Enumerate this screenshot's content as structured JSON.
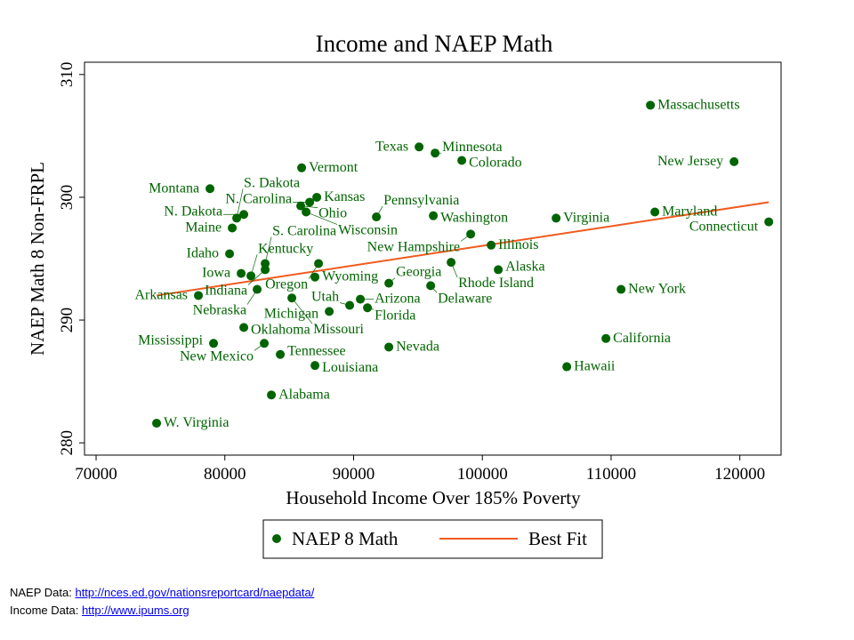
{
  "chart_data": {
    "type": "scatter",
    "title": "Income and NAEP Math",
    "xlabel": "Household Income Over 185% Poverty",
    "ylabel": "NAEP Math 8 Non-FRPL",
    "xlim": [
      69100,
      123200
    ],
    "ylim": [
      279,
      311
    ],
    "xticks": [
      70000,
      80000,
      90000,
      100000,
      110000,
      120000
    ],
    "yticks": [
      280,
      290,
      300,
      310
    ],
    "grid": false,
    "legend_position": "bottom",
    "colors": {
      "points": "#006400",
      "fit": "#f05a1e",
      "label": "#006400"
    },
    "series": [
      {
        "name": "NAEP 8 Math",
        "type": "scatter",
        "points": [
          {
            "label": "Massachusetts",
            "x": 113054,
            "y": 307.5
          },
          {
            "label": "Texas",
            "x": 95087,
            "y": 304.1
          },
          {
            "label": "Minnesota",
            "x": 96330,
            "y": 303.6
          },
          {
            "label": "Colorado",
            "x": 98403,
            "y": 303.0
          },
          {
            "label": "New Jersey",
            "x": 119551,
            "y": 302.9
          },
          {
            "label": "Vermont",
            "x": 85964,
            "y": 302.4
          },
          {
            "label": "Montana",
            "x": 78846,
            "y": 300.7
          },
          {
            "label": "Kansas",
            "x": 87139,
            "y": 300.0
          },
          {
            "label": "N. Carolina",
            "x": 86586,
            "y": 299.6
          },
          {
            "label": "Ohio",
            "x": 85895,
            "y": 299.3
          },
          {
            "label": "Wisconsin",
            "x": 86310,
            "y": 298.8
          },
          {
            "label": "N. Dakota",
            "x": 81472,
            "y": 298.6
          },
          {
            "label": "S. Dakota",
            "x": 80919,
            "y": 298.3
          },
          {
            "label": "Maine",
            "x": 80574,
            "y": 297.5
          },
          {
            "label": "Pennsylvania",
            "x": 91769,
            "y": 298.4
          },
          {
            "label": "Washington",
            "x": 96192,
            "y": 298.5
          },
          {
            "label": "Virginia",
            "x": 105729,
            "y": 298.3
          },
          {
            "label": "Maryland",
            "x": 113400,
            "y": 298.8
          },
          {
            "label": "Connecticut",
            "x": 122246,
            "y": 298.0
          },
          {
            "label": "New Hampshire",
            "x": 99094,
            "y": 297.0
          },
          {
            "label": "Illinois",
            "x": 100684,
            "y": 296.1
          },
          {
            "label": "Idaho",
            "x": 80366,
            "y": 295.4
          },
          {
            "label": "S. Carolina",
            "x": 83131,
            "y": 294.6
          },
          {
            "label": "Indiana",
            "x": 83131,
            "y": 294.1
          },
          {
            "label": "Oregon",
            "x": 87277,
            "y": 294.6
          },
          {
            "label": "Iowa",
            "x": 81265,
            "y": 293.8
          },
          {
            "label": "Kentucky",
            "x": 82025,
            "y": 293.6
          },
          {
            "label": "Wyoming",
            "x": 87001,
            "y": 293.5
          },
          {
            "label": "Georgia",
            "x": 92737,
            "y": 293.0
          },
          {
            "label": "Rhode Island",
            "x": 97574,
            "y": 294.7
          },
          {
            "label": "Alaska",
            "x": 101237,
            "y": 294.1
          },
          {
            "label": "Delaware",
            "x": 95985,
            "y": 292.8
          },
          {
            "label": "Nebraska",
            "x": 82509,
            "y": 292.5
          },
          {
            "label": "Arkansas",
            "x": 77947,
            "y": 292.0
          },
          {
            "label": "Missouri",
            "x": 85204,
            "y": 291.8
          },
          {
            "label": "Arizona",
            "x": 90525,
            "y": 291.7
          },
          {
            "label": "Utah",
            "x": 89696,
            "y": 291.2
          },
          {
            "label": "Florida",
            "x": 91078,
            "y": 291.0
          },
          {
            "label": "Michigan",
            "x": 88107,
            "y": 290.7
          },
          {
            "label": "New York",
            "x": 110774,
            "y": 292.5
          },
          {
            "label": "Oklahoma",
            "x": 81472,
            "y": 289.4
          },
          {
            "label": "Mississippi",
            "x": 79122,
            "y": 288.1
          },
          {
            "label": "New Mexico",
            "x": 83061,
            "y": 288.1
          },
          {
            "label": "Tennessee",
            "x": 84305,
            "y": 287.2
          },
          {
            "label": "Louisiana",
            "x": 87001,
            "y": 286.3
          },
          {
            "label": "Nevada",
            "x": 92737,
            "y": 287.8
          },
          {
            "label": "California",
            "x": 109599,
            "y": 288.5
          },
          {
            "label": "Hawaii",
            "x": 106559,
            "y": 286.2
          },
          {
            "label": "Alabama",
            "x": 83614,
            "y": 283.9
          },
          {
            "label": "W. Virginia",
            "x": 74699,
            "y": 281.6
          }
        ]
      },
      {
        "name": "Best Fit",
        "type": "line",
        "points": [
          {
            "x": 74699,
            "y": 292.0
          },
          {
            "x": 122246,
            "y": 299.6
          }
        ]
      }
    ]
  },
  "footer": {
    "naep_label": "NAEP Data: ",
    "naep_link": "http://nces.ed.gov/nationsreportcard/naepdata/",
    "income_label": "Income Data: ",
    "income_link": "http://www.ipums.org"
  }
}
